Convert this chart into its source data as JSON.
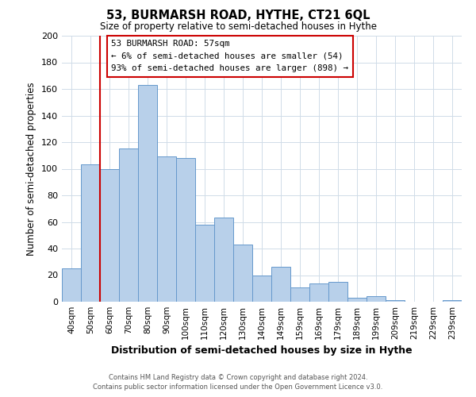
{
  "title": "53, BURMARSH ROAD, HYTHE, CT21 6QL",
  "subtitle": "Size of property relative to semi-detached houses in Hythe",
  "xlabel": "Distribution of semi-detached houses by size in Hythe",
  "ylabel": "Number of semi-detached properties",
  "bar_labels": [
    "40sqm",
    "50sqm",
    "60sqm",
    "70sqm",
    "80sqm",
    "90sqm",
    "100sqm",
    "110sqm",
    "120sqm",
    "130sqm",
    "140sqm",
    "149sqm",
    "159sqm",
    "169sqm",
    "179sqm",
    "189sqm",
    "199sqm",
    "209sqm",
    "219sqm",
    "229sqm",
    "239sqm"
  ],
  "bar_values": [
    25,
    103,
    100,
    115,
    163,
    109,
    108,
    58,
    63,
    43,
    20,
    26,
    11,
    14,
    15,
    3,
    4,
    1,
    0,
    0,
    1
  ],
  "bar_color": "#b8d0ea",
  "bar_edge_color": "#6699cc",
  "vline_x": 1.5,
  "vline_color": "#cc0000",
  "ylim": [
    0,
    200
  ],
  "yticks": [
    0,
    20,
    40,
    60,
    80,
    100,
    120,
    140,
    160,
    180,
    200
  ],
  "annotation_title": "53 BURMARSH ROAD: 57sqm",
  "annotation_line1": "← 6% of semi-detached houses are smaller (54)",
  "annotation_line2": "93% of semi-detached houses are larger (898) →",
  "annotation_box_color": "#ffffff",
  "annotation_box_edge": "#cc0000",
  "footer_line1": "Contains HM Land Registry data © Crown copyright and database right 2024.",
  "footer_line2": "Contains public sector information licensed under the Open Government Licence v3.0.",
  "background_color": "#ffffff",
  "grid_color": "#d0dce8"
}
